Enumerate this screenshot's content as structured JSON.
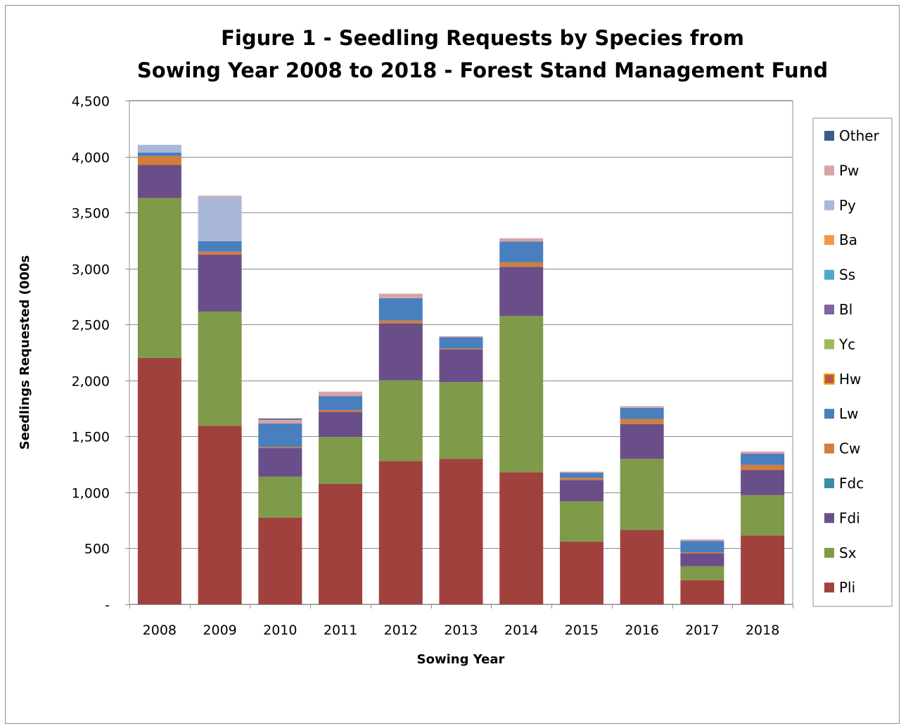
{
  "chart_data": {
    "type": "bar",
    "stacked": true,
    "title": [
      "Figure 1 - Seedling Requests by Species from",
      "Sowing Year 2008 to 2018 - Forest Stand Management Fund"
    ],
    "xlabel": "Sowing Year",
    "ylabel": "Seedlings Requested (000s",
    "ylim": [
      0,
      4500
    ],
    "yticks": [
      0,
      500,
      1000,
      1500,
      2000,
      2500,
      3000,
      3500,
      4000,
      4500
    ],
    "ytick_labels": [
      "-",
      "500",
      "1,000",
      "1,500",
      "2,000",
      "2,500",
      "3,000",
      "3,500",
      "4,000",
      "4,500"
    ],
    "grid": true,
    "legend_position": "right",
    "categories": [
      "2008",
      "2009",
      "2010",
      "2011",
      "2012",
      "2013",
      "2014",
      "2015",
      "2016",
      "2017",
      "2018"
    ],
    "series": [
      {
        "name": "Pli",
        "color": "#A0413D",
        "values": [
          2200,
          1595,
          775,
          1075,
          1280,
          1300,
          1180,
          560,
          665,
          215,
          615
        ]
      },
      {
        "name": "Sx",
        "color": "#7F9A48",
        "values": [
          1430,
          1020,
          365,
          420,
          720,
          685,
          1395,
          360,
          635,
          125,
          360
        ]
      },
      {
        "name": "Fdi",
        "color": "#6A4E8A",
        "values": [
          295,
          510,
          255,
          225,
          510,
          290,
          440,
          190,
          310,
          115,
          225
        ]
      },
      {
        "name": "Fdc",
        "color": "#3B8FA4",
        "values": [
          0,
          0,
          0,
          0,
          0,
          0,
          0,
          0,
          0,
          0,
          0
        ]
      },
      {
        "name": "Cw",
        "color": "#D27E3C",
        "values": [
          80,
          25,
          10,
          15,
          25,
          10,
          40,
          20,
          45,
          10,
          45
        ]
      },
      {
        "name": "Lw",
        "color": "#4A7FBF",
        "values": [
          30,
          95,
          210,
          125,
          200,
          100,
          185,
          45,
          100,
          100,
          100
        ]
      },
      {
        "name": "Hw",
        "color": "#C0504D",
        "values": [
          0,
          0,
          0,
          0,
          0,
          0,
          0,
          0,
          0,
          0,
          0
        ]
      },
      {
        "name": "Yc",
        "color": "#9BBB59",
        "values": [
          0,
          0,
          0,
          0,
          0,
          0,
          0,
          0,
          0,
          0,
          0
        ]
      },
      {
        "name": "Bl",
        "color": "#8064A2",
        "values": [
          0,
          0,
          0,
          0,
          0,
          0,
          0,
          0,
          0,
          0,
          0
        ]
      },
      {
        "name": "Ss",
        "color": "#4BACC6",
        "values": [
          0,
          0,
          0,
          0,
          0,
          0,
          0,
          0,
          0,
          0,
          0
        ]
      },
      {
        "name": "Ba",
        "color": "#F79646",
        "values": [
          0,
          0,
          0,
          0,
          0,
          0,
          0,
          0,
          0,
          0,
          0
        ]
      },
      {
        "name": "Py",
        "color": "#A9B8D8",
        "values": [
          70,
          395,
          0,
          0,
          0,
          0,
          0,
          0,
          0,
          0,
          0
        ]
      },
      {
        "name": "Pw",
        "color": "#D9A3A3",
        "values": [
          0,
          10,
          35,
          40,
          40,
          10,
          30,
          10,
          15,
          15,
          20
        ]
      },
      {
        "name": "Other",
        "color": "#385D8A",
        "values": [
          0,
          0,
          10,
          0,
          0,
          0,
          0,
          0,
          0,
          0,
          0
        ]
      }
    ],
    "legend_order": [
      "Other",
      "Pw",
      "Py",
      "Ba",
      "Ss",
      "Bl",
      "Yc",
      "Hw",
      "Lw",
      "Cw",
      "Fdc",
      "Fdi",
      "Sx",
      "Pli"
    ]
  }
}
